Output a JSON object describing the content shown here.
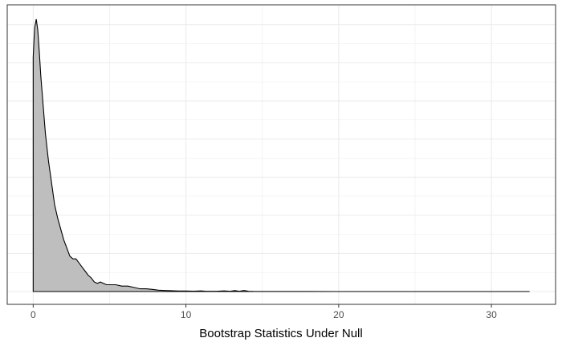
{
  "chart_data": {
    "type": "area",
    "title": "",
    "xlabel": "Bootstrap Statistics Under Null",
    "ylabel": "",
    "xlim": [
      -1.7,
      34.2
    ],
    "ylim": [
      0,
      1.0
    ],
    "x_ticks": [
      0,
      10,
      20,
      30
    ],
    "x_tick_labels": [
      "0",
      "10",
      "20",
      "30"
    ],
    "y_gridlines": [
      0.14,
      0.28,
      0.42,
      0.56,
      0.7,
      0.84,
      0.98
    ],
    "grid": true,
    "legend": "none",
    "colors": {
      "fill": "#bebebe",
      "line": "#000000",
      "grid": "#ebebeb",
      "panel_border": "#333333"
    },
    "series": [
      {
        "x": [
          0,
          0.05,
          0.1,
          0.2,
          0.3,
          0.4,
          0.5,
          0.6,
          0.8,
          1.0,
          1.2,
          1.4,
          1.6,
          1.8,
          2.0,
          2.2,
          2.4,
          2.6,
          2.8,
          3.0,
          3.2,
          3.4,
          3.6,
          3.8,
          4.0,
          4.2,
          4.4,
          4.6,
          4.8,
          5.0,
          5.4,
          5.8,
          6.2,
          6.6,
          7.0,
          7.4,
          7.8,
          8.2,
          8.6,
          9.0,
          9.5,
          10.0,
          10.5,
          11.0,
          11.3,
          11.6,
          12.0,
          12.5,
          12.9,
          13.2,
          13.5,
          13.8,
          14.1,
          14.4,
          15.0,
          20.0,
          25.0,
          30.0,
          32.5
        ],
        "y": [
          0.86,
          0.92,
          0.97,
          1.0,
          0.96,
          0.88,
          0.79,
          0.72,
          0.58,
          0.48,
          0.4,
          0.32,
          0.27,
          0.23,
          0.19,
          0.16,
          0.13,
          0.12,
          0.12,
          0.105,
          0.09,
          0.075,
          0.06,
          0.05,
          0.035,
          0.03,
          0.035,
          0.03,
          0.025,
          0.025,
          0.025,
          0.02,
          0.02,
          0.015,
          0.01,
          0.01,
          0.008,
          0.005,
          0.004,
          0.003,
          0.002,
          0.002,
          0.0015,
          0.0025,
          0.001,
          0.001,
          0.001,
          0.0025,
          0.001,
          0.0035,
          0.001,
          0.004,
          0.001,
          0.0005,
          0.0003,
          0,
          0,
          0,
          0
        ]
      }
    ]
  }
}
